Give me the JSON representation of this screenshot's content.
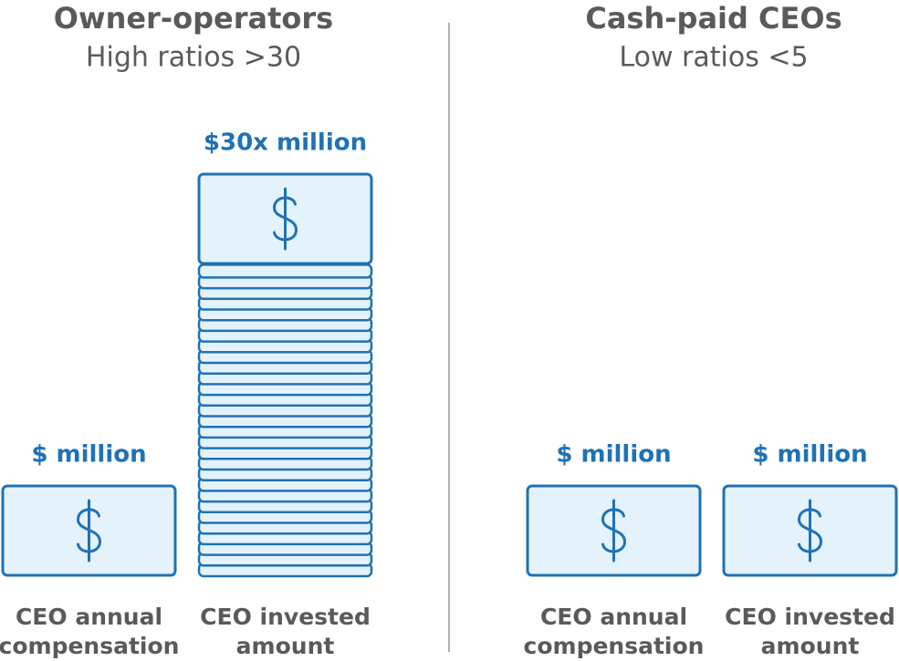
{
  "panels": [
    {
      "title": "Owner-operators",
      "subtitle": "High ratios >30",
      "items": [
        {
          "amount": "$ million",
          "label": [
            "CEO annual",
            "compensation"
          ]
        },
        {
          "amount": "$30x million",
          "label": [
            "CEO invested",
            "amount"
          ]
        }
      ]
    },
    {
      "title": "Cash-paid CEOs",
      "subtitle": "Low ratios <5",
      "items": [
        {
          "amount": "$ million",
          "label": [
            "CEO annual",
            "compensation"
          ]
        },
        {
          "amount": "$ million",
          "label": [
            "CEO invested",
            "amount"
          ]
        }
      ]
    }
  ]
}
